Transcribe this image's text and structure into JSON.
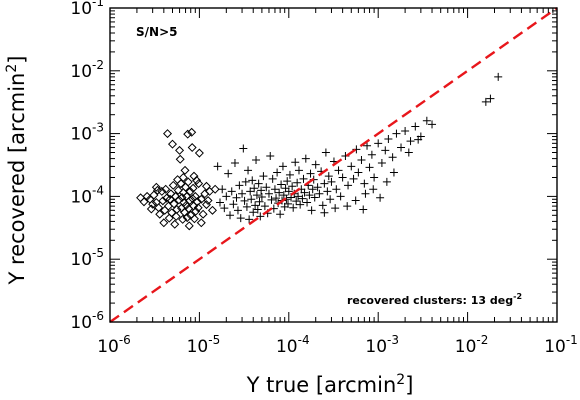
{
  "chart_data": {
    "type": "scatter",
    "xscale": "log",
    "yscale": "log",
    "xlim": [
      1e-06,
      0.1
    ],
    "ylim": [
      1e-06,
      0.1
    ],
    "x_ticks": [
      {
        "base": "10",
        "exp": "-6"
      },
      {
        "base": "10",
        "exp": "-5"
      },
      {
        "base": "10",
        "exp": "-4"
      },
      {
        "base": "10",
        "exp": "-3"
      },
      {
        "base": "10",
        "exp": "-2"
      },
      {
        "base": "10",
        "exp": "-1"
      }
    ],
    "y_ticks": [
      {
        "base": "10",
        "exp": "-6"
      },
      {
        "base": "10",
        "exp": "-5"
      },
      {
        "base": "10",
        "exp": "-4"
      },
      {
        "base": "10",
        "exp": "-3"
      },
      {
        "base": "10",
        "exp": "-2"
      },
      {
        "base": "10",
        "exp": "-1"
      }
    ],
    "xlabel": {
      "main": "Y true [arcmin",
      "sup": "2",
      "close": "]"
    },
    "ylabel": {
      "main": "Y recovered [arcmin",
      "sup": "2",
      "close": "]"
    },
    "annotations": {
      "selection": "S/N>5",
      "density_main": "recovered clusters: 13 deg",
      "density_sup": "-2"
    },
    "reference_line": {
      "style": "dashed",
      "color": "#e8161b",
      "x": [
        1e-06,
        0.1
      ],
      "y": [
        1e-06,
        0.1
      ]
    },
    "grid": false,
    "series": [
      {
        "marker": "diamond",
        "points": [
          [
            2.2e-06,
            9.5e-05
          ],
          [
            2.4e-06,
            8.2e-05
          ],
          [
            2.6e-06,
            0.0001
          ],
          [
            2.8e-06,
            9e-05
          ],
          [
            3e-06,
            7.5e-05
          ],
          [
            3.1e-06,
            0.000105
          ],
          [
            3.3e-06,
            8e-05
          ],
          [
            3.5e-06,
            6.6e-05
          ],
          [
            3.6e-06,
            5.2e-05
          ],
          [
            3.8e-06,
            0.00012
          ],
          [
            3.9e-06,
            8.5e-05
          ],
          [
            4.1e-06,
            6e-05
          ],
          [
            4.2e-06,
            0.00013
          ],
          [
            4.4e-06,
            0.001
          ],
          [
            4.5e-06,
            7e-05
          ],
          [
            4.6e-06,
            4.5e-05
          ],
          [
            4.7e-06,
            9e-05
          ],
          [
            4.8e-06,
            0.00011
          ],
          [
            4.9e-06,
            5.5e-05
          ],
          [
            5e-06,
            0.00068
          ],
          [
            5.1e-06,
            0.00015
          ],
          [
            5.2e-06,
            7.6e-05
          ],
          [
            5.4e-06,
            0.0001
          ],
          [
            5.5e-06,
            4.8e-05
          ],
          [
            5.6e-06,
            6.2e-05
          ],
          [
            5.8e-06,
            0.000125
          ],
          [
            5.9e-06,
            8.8e-05
          ],
          [
            6e-06,
            0.00054
          ],
          [
            6.1e-06,
            0.00039
          ],
          [
            6.2e-06,
            0.00016
          ],
          [
            6.3e-06,
            6.5e-05
          ],
          [
            6.4e-06,
            9.6e-05
          ],
          [
            6.5e-06,
            4.3e-05
          ],
          [
            6.6e-06,
            0.000115
          ],
          [
            6.7e-06,
            8e-05
          ],
          [
            6.8e-06,
            5.6e-05
          ],
          [
            6.9e-06,
            0.00026
          ],
          [
            7e-06,
            0.00014
          ],
          [
            7.1e-06,
            7.2e-05
          ],
          [
            7.2e-06,
            0.0001
          ],
          [
            7.3e-06,
            4.6e-05
          ],
          [
            7.4e-06,
            0.00098
          ],
          [
            7.5e-06,
            0.00017
          ],
          [
            7.6e-06,
            6.4e-05
          ],
          [
            7.8e-06,
            8.6e-05
          ],
          [
            7.9e-06,
            0.00012
          ],
          [
            8e-06,
            5e-05
          ],
          [
            8.2e-06,
            0.00105
          ],
          [
            8.3e-06,
            0.0006
          ],
          [
            8.4e-06,
            9.2e-05
          ],
          [
            8.5e-06,
            0.000135
          ],
          [
            8.6e-06,
            7e-05
          ],
          [
            8.8e-06,
            4.4e-05
          ],
          [
            9e-06,
            0.0001
          ],
          [
            9.1e-06,
            5.8e-05
          ],
          [
            9.3e-06,
            0.00018
          ],
          [
            9.5e-06,
            8.2e-05
          ],
          [
            9.7e-06,
            6.6e-05
          ],
          [
            1e-05,
            0.00049
          ],
          [
            1.05e-05,
            9e-05
          ],
          [
            1.1e-05,
            5.2e-05
          ],
          [
            1.15e-05,
            0.00011
          ],
          [
            1.2e-05,
            7.4e-05
          ],
          [
            1.3e-05,
            0.00012
          ],
          [
            1.4e-05,
            6e-05
          ],
          [
            1.5e-05,
            0.00013
          ],
          [
            1.2e-05,
            0.000145
          ],
          [
            1.25e-05,
            8.6e-05
          ],
          [
            3.3e-06,
            0.00014
          ],
          [
            4e-06,
            3.8e-05
          ],
          [
            5.3e-06,
            3.6e-05
          ],
          [
            7.7e-06,
            3.4e-05
          ],
          [
            9.8e-06,
            0.00016
          ],
          [
            1.05e-05,
            3.8e-05
          ],
          [
            3.4e-06,
            0.000125
          ],
          [
            4.3e-06,
            9.4e-05
          ],
          [
            5.7e-06,
            0.000185
          ],
          [
            6.6e-06,
            0.0002
          ],
          [
            8.7e-06,
            0.00021
          ],
          [
            2.9e-06,
            6.3e-05
          ]
        ]
      },
      {
        "marker": "plus",
        "points": [
          [
            1.6e-05,
            0.0003
          ],
          [
            1.7e-05,
            8e-05
          ],
          [
            1.8e-05,
            0.00013
          ],
          [
            1.9e-05,
            6.5e-05
          ],
          [
            2e-05,
            0.0001
          ],
          [
            2.1e-05,
            0.00023
          ],
          [
            2.2e-05,
            5e-05
          ],
          [
            2.3e-05,
            0.00012
          ],
          [
            2.4e-05,
            7.5e-05
          ],
          [
            2.5e-05,
            0.00034
          ],
          [
            2.6e-05,
            9.5e-05
          ],
          [
            2.7e-05,
            6e-05
          ],
          [
            2.8e-05,
            0.00015
          ],
          [
            2.9e-05,
            4.5e-05
          ],
          [
            3e-05,
            0.00011
          ],
          [
            3.1e-05,
            0.00058
          ],
          [
            3.2e-05,
            8.5e-05
          ],
          [
            3.3e-05,
            0.00017
          ],
          [
            3.4e-05,
            6.8e-05
          ],
          [
            3.5e-05,
            0.00026
          ],
          [
            3.6e-05,
            4.3e-05
          ],
          [
            3.7e-05,
            0.00012
          ],
          [
            3.8e-05,
            9e-05
          ],
          [
            3.9e-05,
            0.00018
          ],
          [
            4e-05,
            5.6e-05
          ],
          [
            4.1e-05,
            0.000135
          ],
          [
            4.2e-05,
            7.2e-05
          ],
          [
            4.3e-05,
            0.00038
          ],
          [
            4.4e-05,
            0.000105
          ],
          [
            4.5e-05,
            6.2e-05
          ],
          [
            4.6e-05,
            0.00016
          ],
          [
            4.7e-05,
            8.2e-05
          ],
          [
            4.8e-05,
            4.8e-05
          ],
          [
            4.9e-05,
            0.000125
          ],
          [
            5e-05,
            9.8e-05
          ],
          [
            5.2e-05,
            0.00021
          ],
          [
            5.4e-05,
            7e-05
          ],
          [
            5.6e-05,
            0.00014
          ],
          [
            5.8e-05,
            5.4e-05
          ],
          [
            6e-05,
            0.00011
          ],
          [
            6.2e-05,
            0.00044
          ],
          [
            6.4e-05,
            8.8e-05
          ],
          [
            6.6e-05,
            0.00019
          ],
          [
            6.8e-05,
            6.4e-05
          ],
          [
            7e-05,
            0.00013
          ],
          [
            7.2e-05,
            9.4e-05
          ],
          [
            7.4e-05,
            0.00024
          ],
          [
            7.6e-05,
            7.8e-05
          ],
          [
            7.8e-05,
            0.000115
          ],
          [
            8e-05,
            5.2e-05
          ],
          [
            8.2e-05,
            0.000155
          ],
          [
            8.4e-05,
            8.6e-05
          ],
          [
            8.6e-05,
            0.0003
          ],
          [
            8.8e-05,
            0.000105
          ],
          [
            9e-05,
            6.8e-05
          ],
          [
            9.2e-05,
            0.000135
          ],
          [
            9.4e-05,
            9e-05
          ],
          [
            9.6e-05,
            0.000175
          ],
          [
            9.8e-05,
            7.6e-05
          ],
          [
            0.0001,
            0.00012
          ],
          [
            0.000103,
            0.00022
          ],
          [
            0.000106,
            9.6e-05
          ],
          [
            0.000109,
            0.000145
          ],
          [
            0.000112,
            6.6e-05
          ],
          [
            0.000115,
            0.00011
          ],
          [
            0.000118,
            0.00035
          ],
          [
            0.000121,
            8.4e-05
          ],
          [
            0.000124,
            0.000165
          ],
          [
            0.000127,
            0.0001
          ],
          [
            0.00013,
            0.00026
          ],
          [
            0.000134,
            7.4e-05
          ],
          [
            0.000138,
            0.00013
          ],
          [
            0.000142,
            9.2e-05
          ],
          [
            0.000146,
            0.00019
          ],
          [
            0.00015,
            0.000115
          ],
          [
            0.000155,
            0.0004
          ],
          [
            0.00016,
            8e-05
          ],
          [
            0.000165,
            0.00015
          ],
          [
            0.00017,
            0.000105
          ],
          [
            0.000175,
            0.00023
          ],
          [
            0.00018,
            6e-05
          ],
          [
            0.000185,
            0.00013
          ],
          [
            0.00019,
            0.000185
          ],
          [
            0.000195,
            9.6e-05
          ],
          [
            0.0002,
            0.00032
          ],
          [
            0.00021,
            0.00014
          ],
          [
            0.00022,
            0.00011
          ],
          [
            0.00023,
            0.00025
          ],
          [
            0.00024,
            7.2e-05
          ],
          [
            0.00025,
            0.00016
          ],
          [
            0.00026,
            0.0005
          ],
          [
            0.00027,
            0.00012
          ],
          [
            0.00028,
            0.00021
          ],
          [
            0.00029,
            9e-05
          ],
          [
            0.0003,
            0.00017
          ],
          [
            0.00032,
            0.00036
          ],
          [
            0.00034,
            0.00013
          ],
          [
            0.00036,
            0.00026
          ],
          [
            0.00038,
            0.0001
          ],
          [
            0.0004,
            0.0002
          ],
          [
            0.00043,
            0.00044
          ],
          [
            0.00046,
            0.00015
          ],
          [
            0.0005,
            0.0003
          ],
          [
            0.00053,
            0.00019
          ],
          [
            0.00057,
            0.00056
          ],
          [
            0.0006,
            0.00024
          ],
          [
            0.00065,
            0.00038
          ],
          [
            0.0007,
            0.00016
          ],
          [
            0.00075,
            0.00064
          ],
          [
            0.0008,
            0.00029
          ],
          [
            0.00085,
            0.00046
          ],
          [
            0.0009,
            0.0002
          ],
          [
            0.001,
            0.0007
          ],
          [
            0.0011,
            0.00034
          ],
          [
            0.0012,
            0.00054
          ],
          [
            0.0013,
            0.00082
          ],
          [
            0.00145,
            0.00042
          ],
          [
            0.0016,
            0.001
          ],
          [
            0.0018,
            0.0006
          ],
          [
            0.002,
            0.0011
          ],
          [
            0.0023,
            0.00076
          ],
          [
            0.0026,
            0.0013
          ],
          [
            0.003,
            0.0009
          ],
          [
            0.0035,
            0.0016
          ],
          [
            0.004,
            0.0014
          ],
          [
            0.016,
            0.0032
          ],
          [
            0.018,
            0.0036
          ],
          [
            0.022,
            0.008
          ],
          [
            0.00056,
            8.6e-05
          ],
          [
            0.00068,
            6.2e-05
          ],
          [
            0.00088,
            0.00013
          ],
          [
            0.00105,
            9.5e-05
          ],
          [
            0.00125,
            0.00017
          ],
          [
            0.00072,
            0.00011
          ],
          [
            0.00045,
            7e-05
          ],
          [
            0.0015,
            0.00024
          ],
          [
            0.00025,
            5.5e-05
          ],
          [
            0.00033,
            6.5e-05
          ],
          [
            0.0022,
            0.0005
          ],
          [
            0.0028,
            0.0008
          ]
        ]
      }
    ]
  }
}
